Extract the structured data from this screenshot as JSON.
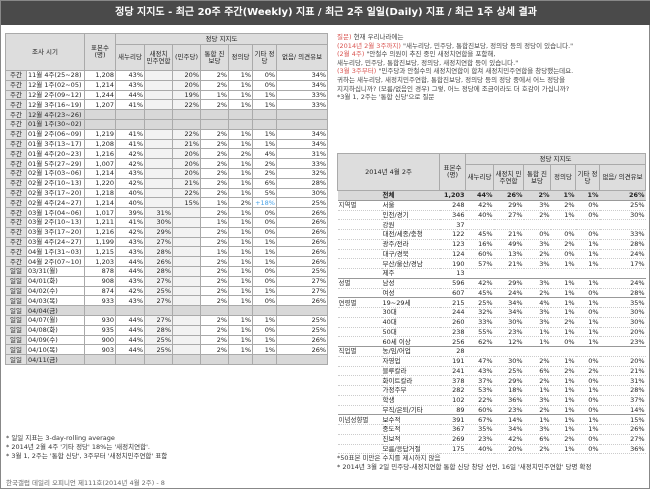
{
  "title": "정당 지지도 - 최근 20주 주간(Weekly) 지표 / 최근 2주 일일(Daily) 지표 / 최근 1주 상세 결과",
  "left": {
    "header_top": [
      "조사 시기",
      "표본수 (명)",
      "정당 지지도"
    ],
    "header_sub": [
      "새누리당",
      "새정치 민주연합",
      "(민주당)",
      "통합 진보당",
      "정의당",
      "기타 정당",
      "없음/ 의견유보"
    ],
    "rows": [
      [
        "주간",
        "11월 4주(25~28)",
        "1,208",
        "43%",
        "",
        "20%",
        "2%",
        "1%",
        "0%",
        "34%"
      ],
      [
        "주간",
        "12월 1주(02~05)",
        "1,214",
        "43%",
        "",
        "20%",
        "2%",
        "1%",
        "0%",
        "34%"
      ],
      [
        "주간",
        "12월 2주(09~12)",
        "1,244",
        "44%",
        "",
        "19%",
        "1%",
        "1%",
        "1%",
        "33%"
      ],
      [
        "주간",
        "12월 3주(16~19)",
        "1,207",
        "41%",
        "",
        "22%",
        "2%",
        "1%",
        "1%",
        "33%"
      ],
      [
        "주간",
        "12월 4주(23~26)",
        "",
        "",
        "",
        "",
        "",
        "",
        "",
        ""
      ],
      [
        "주간",
        "01월 1주(30~02)",
        "",
        "",
        "",
        "",
        "",
        "",
        "",
        ""
      ],
      [
        "주간",
        "01월 2주(06~09)",
        "1,219",
        "41%",
        "",
        "22%",
        "2%",
        "1%",
        "1%",
        "34%"
      ],
      [
        "주간",
        "01월 3주(13~17)",
        "1,208",
        "41%",
        "",
        "21%",
        "2%",
        "1%",
        "1%",
        "34%"
      ],
      [
        "주간",
        "01월 4주(20~23)",
        "1,216",
        "42%",
        "",
        "20%",
        "2%",
        "2%",
        "4%",
        "31%"
      ],
      [
        "주간",
        "01월 5주(27~29)",
        "1,007",
        "42%",
        "",
        "20%",
        "2%",
        "1%",
        "2%",
        "33%"
      ],
      [
        "주간",
        "02월 1주(03~06)",
        "1,214",
        "43%",
        "",
        "20%",
        "2%",
        "1%",
        "2%",
        "32%"
      ],
      [
        "주간",
        "02월 2주(10~13)",
        "1,220",
        "42%",
        "",
        "21%",
        "2%",
        "1%",
        "6%",
        "28%"
      ],
      [
        "주간",
        "02월 3주(17~20)",
        "1,218",
        "40%",
        "",
        "22%",
        "2%",
        "1%",
        "5%",
        "30%"
      ],
      [
        "주간",
        "02월 4주(24~27)",
        "1,214",
        "40%",
        "",
        "15%",
        "1%",
        "2%",
        "+18%",
        "25%"
      ],
      [
        "주간",
        "03월 1주(04~06)",
        "1,017",
        "39%",
        "31%",
        "",
        "2%",
        "1%",
        "0%",
        "26%"
      ],
      [
        "주간",
        "03월 2주(10~13)",
        "1,211",
        "41%",
        "30%",
        "",
        "1%",
        "1%",
        "0%",
        "26%"
      ],
      [
        "주간",
        "03월 3주(17~20)",
        "1,216",
        "42%",
        "29%",
        "",
        "2%",
        "1%",
        "0%",
        "26%"
      ],
      [
        "주간",
        "03월 4주(24~27)",
        "1,199",
        "43%",
        "27%",
        "",
        "2%",
        "1%",
        "1%",
        "26%"
      ],
      [
        "주간",
        "04월 1주(31~03)",
        "1,215",
        "43%",
        "28%",
        "",
        "1%",
        "1%",
        "1%",
        "26%"
      ],
      [
        "주간",
        "04월 2주(07~10)",
        "1,203",
        "44%",
        "26%",
        "",
        "2%",
        "1%",
        "1%",
        "26%"
      ],
      [
        "일일",
        "03/31(월)",
        "878",
        "44%",
        "28%",
        "",
        "2%",
        "1%",
        "0%",
        "25%"
      ],
      [
        "일일",
        "04/01(화)",
        "908",
        "43%",
        "27%",
        "",
        "2%",
        "1%",
        "0%",
        "27%"
      ],
      [
        "일일",
        "04/02(수)",
        "874",
        "42%",
        "25%",
        "",
        "2%",
        "1%",
        "1%",
        "27%"
      ],
      [
        "일일",
        "04/03(목)",
        "933",
        "43%",
        "27%",
        "",
        "2%",
        "1%",
        "0%",
        "26%"
      ],
      [
        "일일",
        "04/04(금)",
        "",
        "",
        "",
        "",
        "",
        "",
        "",
        ""
      ],
      [
        "일일",
        "04/07(월)",
        "930",
        "44%",
        "27%",
        "",
        "2%",
        "1%",
        "1%",
        "25%"
      ],
      [
        "일일",
        "04/08(화)",
        "935",
        "44%",
        "28%",
        "",
        "2%",
        "1%",
        "0%",
        "25%"
      ],
      [
        "일일",
        "04/09(수)",
        "900",
        "44%",
        "25%",
        "",
        "2%",
        "1%",
        "1%",
        "26%"
      ],
      [
        "일일",
        "04/10(목)",
        "903",
        "44%",
        "25%",
        "",
        "2%",
        "1%",
        "1%",
        "26%"
      ],
      [
        "일일",
        "04/11(금)",
        "",
        "",
        "",
        "",
        "",
        "",
        "",
        ""
      ]
    ],
    "notes": [
      "* 일일 지표는 3-day-rolling average",
      "* 2014년 2월 4주 '기타 정당' 18%는 '새정치연합'.",
      "* 3월 1, 2주는 '통합 신당', 3주부터 '새정치민주연합' 표함"
    ],
    "footer": "한국갤럽 데일리 오피니언 제111호(2014년 4월 2주) - 8"
  },
  "right": {
    "notes": [
      {
        "p": "질문)",
        "t": " 현재 우리나라에는"
      },
      {
        "p": "(2014년 2월 3주까지)",
        "t": " \"새누리당, 민주당, 통합진보당, 정의당 등의 정당이 있습니다.\""
      },
      {
        "p": "(2월 4주)",
        "t": " \"안철수 의원이 추진 중인 새정치연합을 포함해,"
      },
      {
        "p": "",
        "t": "새누리당, 민주당, 통합진보당, 정의당, 새정치연합 등이 있습니다.\""
      },
      {
        "p": "(3월 3주부터)",
        "t": " \"민주당과 안철수의 새정치연합이 합쳐 새정치민주연합을 창당했는데요."
      },
      {
        "p": "",
        "t": "귀하는 새누리당, 새정치민주연합, 통합진보당, 정의당 등의 정당 중에서 어느 정당을"
      },
      {
        "p": "",
        "t": "지지하십니까? (모름/없음인 경우) 그렇, 어느 정당에 조금이라도 더 호감이 가십니까?"
      },
      {
        "p": "",
        "t": "*3월 1, 2주는 '통합 신당'으로 질문"
      }
    ],
    "period": "2014년 4월 2주",
    "header_top": [
      "표본수 (명)",
      "정당 지지도"
    ],
    "header_sub": [
      "새누리당",
      "새정치 민주연합",
      "통합 진보당",
      "정의당",
      "기타 정당",
      "없음/ 의견유보"
    ],
    "rows": [
      [
        "",
        "전체",
        "1,203",
        "44%",
        "26%",
        "2%",
        "1%",
        "1%",
        "26%"
      ],
      [
        "지역별",
        "서울",
        "248",
        "42%",
        "29%",
        "3%",
        "2%",
        "0%",
        "25%"
      ],
      [
        "",
        "인천/경기",
        "346",
        "40%",
        "27%",
        "2%",
        "1%",
        "0%",
        "30%"
      ],
      [
        "",
        "강원",
        "37",
        "",
        "",
        "",
        "",
        "",
        ""
      ],
      [
        "",
        "대전/세종/충청",
        "122",
        "45%",
        "21%",
        "0%",
        "0%",
        "0%",
        "33%"
      ],
      [
        "",
        "광주/전라",
        "123",
        "16%",
        "49%",
        "3%",
        "2%",
        "1%",
        "28%"
      ],
      [
        "",
        "대구/경북",
        "124",
        "60%",
        "13%",
        "2%",
        "0%",
        "1%",
        "24%"
      ],
      [
        "",
        "부산/울산/경남",
        "190",
        "57%",
        "21%",
        "3%",
        "1%",
        "1%",
        "17%"
      ],
      [
        "",
        "제주",
        "13",
        "",
        "",
        "",
        "",
        "",
        ""
      ],
      [
        "성별",
        "남성",
        "596",
        "42%",
        "29%",
        "3%",
        "1%",
        "1%",
        "24%"
      ],
      [
        "",
        "여성",
        "607",
        "45%",
        "24%",
        "2%",
        "1%",
        "0%",
        "28%"
      ],
      [
        "연령별",
        "19~29세",
        "215",
        "25%",
        "34%",
        "4%",
        "1%",
        "1%",
        "35%"
      ],
      [
        "",
        "30대",
        "244",
        "32%",
        "34%",
        "3%",
        "1%",
        "0%",
        "30%"
      ],
      [
        "",
        "40대",
        "260",
        "33%",
        "30%",
        "3%",
        "2%",
        "1%",
        "30%"
      ],
      [
        "",
        "50대",
        "238",
        "55%",
        "23%",
        "1%",
        "1%",
        "1%",
        "20%"
      ],
      [
        "",
        "60세 이상",
        "256",
        "62%",
        "12%",
        "1%",
        "0%",
        "1%",
        "23%"
      ],
      [
        "직업별",
        "농/임/어업",
        "28",
        "",
        "",
        "",
        "",
        "",
        ""
      ],
      [
        "",
        "자영업",
        "191",
        "47%",
        "30%",
        "2%",
        "1%",
        "0%",
        "20%"
      ],
      [
        "",
        "블루칼라",
        "241",
        "43%",
        "25%",
        "6%",
        "2%",
        "2%",
        "21%"
      ],
      [
        "",
        "화이트칼라",
        "378",
        "37%",
        "29%",
        "2%",
        "1%",
        "0%",
        "31%"
      ],
      [
        "",
        "가정주부",
        "282",
        "53%",
        "18%",
        "1%",
        "1%",
        "1%",
        "28%"
      ],
      [
        "",
        "학생",
        "102",
        "22%",
        "36%",
        "3%",
        "1%",
        "0%",
        "37%"
      ],
      [
        "",
        "무직/은퇴/기타",
        "89",
        "60%",
        "23%",
        "2%",
        "1%",
        "0%",
        "14%"
      ],
      [
        "이념성향별",
        "보수적",
        "391",
        "67%",
        "14%",
        "1%",
        "1%",
        "1%",
        "15%"
      ],
      [
        "",
        "중도적",
        "367",
        "35%",
        "34%",
        "3%",
        "1%",
        "1%",
        "26%"
      ],
      [
        "",
        "진보적",
        "269",
        "23%",
        "42%",
        "6%",
        "2%",
        "0%",
        "27%"
      ],
      [
        "",
        "모름/응답거절",
        "175",
        "40%",
        "20%",
        "2%",
        "1%",
        "0%",
        "36%"
      ]
    ],
    "notes_bottom": [
      "*50표본 미만은 수치를 제시하지 않음",
      "* 2014년 3월 2일 민주당-새정치연합 통합 신당 창당 선언, 16일 '새정치민주연합' 당명 확정"
    ]
  }
}
